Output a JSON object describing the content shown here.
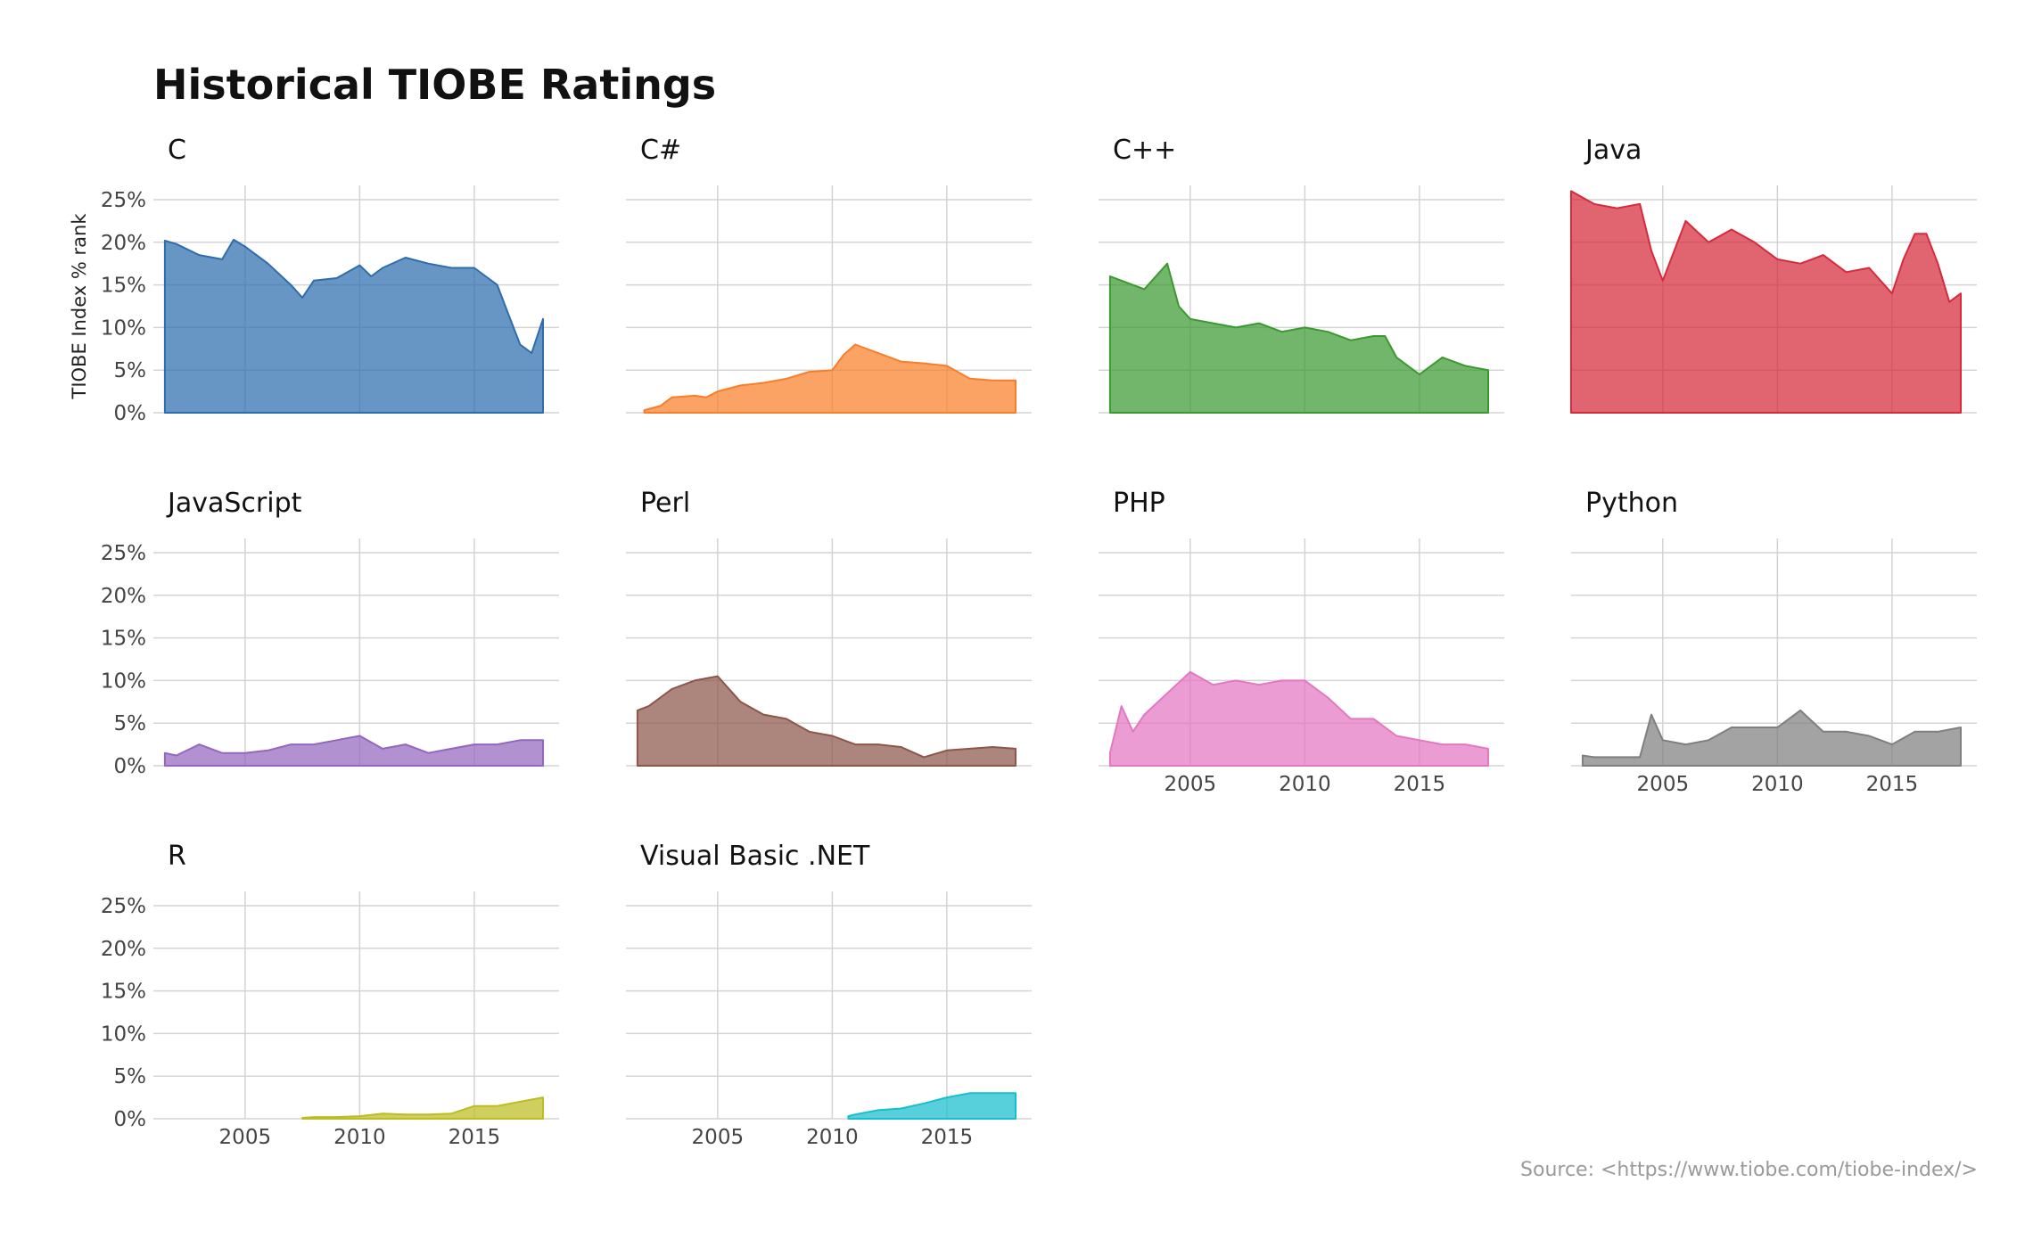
{
  "title": "Historical TIOBE Ratings",
  "caption": "Source: <https://www.tiobe.com/tiobe-index/>",
  "chart_data": {
    "type": "area",
    "title": "Historical TIOBE Ratings",
    "ylabel": "TIOBE Index % rank",
    "xlabel": "",
    "x_ticks": [
      2005,
      2010,
      2015
    ],
    "y_ticks": [
      0,
      5,
      10,
      15,
      20,
      25
    ],
    "y_tick_labels": [
      "0%",
      "5%",
      "10%",
      "15%",
      "20%",
      "25%"
    ],
    "xlim": [
      2001.0,
      2018.7
    ],
    "ylim": [
      0,
      26
    ],
    "grid": true,
    "legend": "none",
    "facets": [
      {
        "name": "C",
        "color": "#2E6DAD",
        "x": [
          2001.5,
          2002.0,
          2003.0,
          2004.0,
          2004.5,
          2005.0,
          2006.0,
          2007.0,
          2007.5,
          2008.0,
          2009.0,
          2010.0,
          2010.5,
          2011.0,
          2012.0,
          2013.0,
          2014.0,
          2015.0,
          2015.5,
          2016.0,
          2016.5,
          2017.0,
          2017.5,
          2018.0
        ],
        "values": [
          20.2,
          19.8,
          18.5,
          18.0,
          20.3,
          19.5,
          17.5,
          15.0,
          13.5,
          15.5,
          15.8,
          17.3,
          16.0,
          17.0,
          18.2,
          17.5,
          17.0,
          17.0,
          16.0,
          15.0,
          11.5,
          8.0,
          7.0,
          11.0
        ]
      },
      {
        "name": "C#",
        "color": "#F97E2A",
        "x": [
          2001.8,
          2002.5,
          2003.0,
          2004.0,
          2004.5,
          2005.0,
          2006.0,
          2007.0,
          2008.0,
          2009.0,
          2010.0,
          2010.5,
          2011.0,
          2012.0,
          2013.0,
          2014.0,
          2015.0,
          2016.0,
          2017.0,
          2018.0
        ],
        "values": [
          0.3,
          0.8,
          1.8,
          2.0,
          1.8,
          2.5,
          3.2,
          3.5,
          4.0,
          4.8,
          5.0,
          6.8,
          8.0,
          7.0,
          6.0,
          5.8,
          5.5,
          4.0,
          3.8,
          3.8
        ]
      },
      {
        "name": "C++",
        "color": "#3A9A30",
        "x": [
          2001.5,
          2002.0,
          2003.0,
          2004.0,
          2004.5,
          2005.0,
          2006.0,
          2007.0,
          2008.0,
          2009.0,
          2010.0,
          2011.0,
          2012.0,
          2013.0,
          2013.5,
          2014.0,
          2015.0,
          2016.0,
          2017.0,
          2018.0
        ],
        "values": [
          16.0,
          15.5,
          14.5,
          17.5,
          12.5,
          11.0,
          10.5,
          10.0,
          10.5,
          9.5,
          10.0,
          9.5,
          8.5,
          9.0,
          9.0,
          6.5,
          4.5,
          6.5,
          5.5,
          5.0
        ]
      },
      {
        "name": "Java",
        "color": "#D62A3A",
        "x": [
          2001.0,
          2002.0,
          2003.0,
          2004.0,
          2004.5,
          2005.0,
          2006.0,
          2007.0,
          2008.0,
          2009.0,
          2010.0,
          2011.0,
          2012.0,
          2013.0,
          2014.0,
          2015.0,
          2015.5,
          2016.0,
          2016.5,
          2017.0,
          2017.5,
          2018.0
        ],
        "values": [
          26.0,
          24.5,
          24.0,
          24.5,
          19.0,
          15.5,
          22.5,
          20.0,
          21.5,
          20.0,
          18.0,
          17.5,
          18.5,
          16.5,
          17.0,
          14.0,
          18.0,
          21.0,
          21.0,
          17.5,
          13.0,
          14.0
        ]
      },
      {
        "name": "JavaScript",
        "color": "#9466BE",
        "x": [
          2001.5,
          2002.0,
          2003.0,
          2004.0,
          2005.0,
          2006.0,
          2007.0,
          2008.0,
          2009.0,
          2010.0,
          2011.0,
          2012.0,
          2013.0,
          2014.0,
          2015.0,
          2016.0,
          2017.0,
          2018.0
        ],
        "values": [
          1.5,
          1.2,
          2.5,
          1.5,
          1.5,
          1.8,
          2.5,
          2.5,
          3.0,
          3.5,
          2.0,
          2.5,
          1.5,
          2.0,
          2.5,
          2.5,
          3.0,
          3.0
        ]
      },
      {
        "name": "Perl",
        "color": "#8C564B",
        "x": [
          2001.5,
          2002.0,
          2003.0,
          2004.0,
          2005.0,
          2006.0,
          2007.0,
          2008.0,
          2009.0,
          2010.0,
          2011.0,
          2012.0,
          2013.0,
          2014.0,
          2015.0,
          2016.0,
          2017.0,
          2018.0
        ],
        "values": [
          6.5,
          7.0,
          9.0,
          10.0,
          10.5,
          7.5,
          6.0,
          5.5,
          4.0,
          3.5,
          2.5,
          2.5,
          2.2,
          1.0,
          1.8,
          2.0,
          2.2,
          2.0
        ]
      },
      {
        "name": "PHP",
        "color": "#E377C2",
        "x": [
          2001.5,
          2002.0,
          2002.5,
          2003.0,
          2004.0,
          2005.0,
          2006.0,
          2007.0,
          2008.0,
          2009.0,
          2010.0,
          2011.0,
          2012.0,
          2013.0,
          2014.0,
          2015.0,
          2016.0,
          2017.0,
          2018.0
        ],
        "values": [
          1.5,
          7.0,
          4.0,
          6.0,
          8.5,
          11.0,
          9.5,
          10.0,
          9.5,
          10.0,
          10.0,
          8.0,
          5.5,
          5.5,
          3.5,
          3.0,
          2.5,
          2.5,
          2.0
        ]
      },
      {
        "name": "Python",
        "color": "#7F7F7F",
        "x": [
          2001.5,
          2002.0,
          2003.0,
          2004.0,
          2004.5,
          2005.0,
          2006.0,
          2007.0,
          2008.0,
          2009.0,
          2010.0,
          2011.0,
          2012.0,
          2013.0,
          2014.0,
          2015.0,
          2016.0,
          2017.0,
          2018.0
        ],
        "values": [
          1.2,
          1.0,
          1.0,
          1.0,
          6.0,
          3.0,
          2.5,
          3.0,
          4.5,
          4.5,
          4.5,
          6.5,
          4.0,
          4.0,
          3.5,
          2.5,
          4.0,
          4.0,
          4.5
        ]
      },
      {
        "name": "R",
        "color": "#BCBD22",
        "x": [
          2007.5,
          2008.0,
          2009.0,
          2010.0,
          2011.0,
          2012.0,
          2013.0,
          2014.0,
          2015.0,
          2016.0,
          2017.0,
          2018.0
        ],
        "values": [
          0.1,
          0.2,
          0.2,
          0.3,
          0.6,
          0.5,
          0.5,
          0.6,
          1.5,
          1.5,
          2.0,
          2.5
        ]
      },
      {
        "name": "Visual Basic .NET",
        "color": "#17BECF",
        "x": [
          2010.7,
          2011.0,
          2012.0,
          2013.0,
          2014.0,
          2015.0,
          2016.0,
          2017.0,
          2018.0
        ],
        "values": [
          0.3,
          0.5,
          1.0,
          1.2,
          1.8,
          2.5,
          3.0,
          3.0,
          3.0
        ]
      }
    ]
  }
}
